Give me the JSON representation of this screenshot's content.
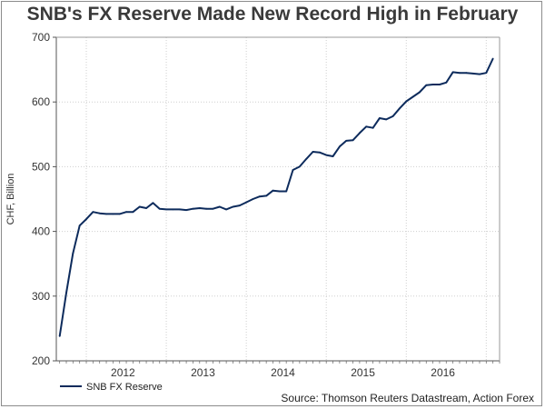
{
  "chart_data": {
    "type": "line",
    "title": "SNB's FX Reserve Made New Record High in February",
    "ylabel": "CHF, Billion",
    "xlabel": "",
    "ylim": [
      200,
      700
    ],
    "yticks": [
      200,
      300,
      400,
      500,
      600,
      700
    ],
    "xtick_labels": [
      "2012",
      "2013",
      "2014",
      "2015",
      "2016"
    ],
    "grid": true,
    "legend_position": "bottom-left",
    "source": "Source: Thomson Reuters Datastream, Action Forex",
    "series": [
      {
        "name": "SNB FX Reserve",
        "color": "#0d2b5c",
        "x": [
          "2011-09",
          "2011-10",
          "2011-11",
          "2011-12",
          "2012-01",
          "2012-02",
          "2012-03",
          "2012-04",
          "2012-05",
          "2012-06",
          "2012-07",
          "2012-08",
          "2012-09",
          "2012-10",
          "2012-11",
          "2012-12",
          "2013-01",
          "2013-02",
          "2013-03",
          "2013-04",
          "2013-05",
          "2013-06",
          "2013-07",
          "2013-08",
          "2013-09",
          "2013-10",
          "2013-11",
          "2013-12",
          "2014-01",
          "2014-02",
          "2014-03",
          "2014-04",
          "2014-05",
          "2014-06",
          "2014-07",
          "2014-08",
          "2014-09",
          "2014-10",
          "2014-11",
          "2014-12",
          "2015-01",
          "2015-02",
          "2015-03",
          "2015-04",
          "2015-05",
          "2015-06",
          "2015-07",
          "2015-08",
          "2015-09",
          "2015-10",
          "2015-11",
          "2015-12",
          "2016-01",
          "2016-02",
          "2016-03",
          "2016-04",
          "2016-05",
          "2016-06",
          "2016-07",
          "2016-08",
          "2016-09",
          "2016-10",
          "2016-11",
          "2016-12",
          "2017-01",
          "2017-02"
        ],
        "values": [
          238,
          305,
          366,
          409,
          419,
          430,
          428,
          427,
          427,
          427,
          430,
          430,
          438,
          436,
          444,
          435,
          434,
          434,
          434,
          433,
          435,
          436,
          435,
          435,
          438,
          434,
          438,
          440,
          445,
          450,
          454,
          455,
          463,
          462,
          462,
          495,
          500,
          512,
          523,
          522,
          518,
          516,
          531,
          540,
          541,
          552,
          562,
          560,
          575,
          573,
          578,
          590,
          601,
          608,
          615,
          626,
          627,
          627,
          630,
          646,
          645,
          645,
          644,
          643,
          645,
          667
        ]
      }
    ]
  }
}
